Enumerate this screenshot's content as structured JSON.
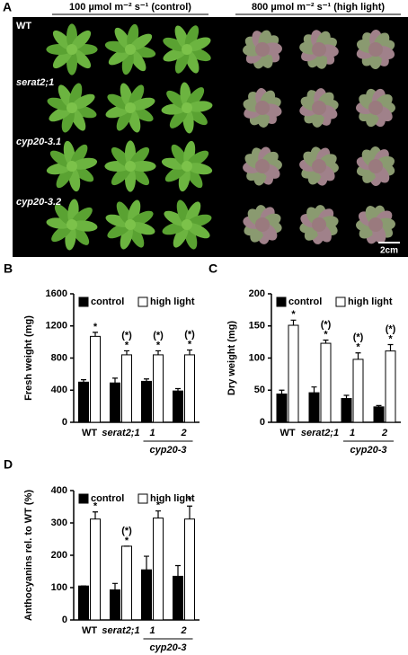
{
  "panel_a": {
    "label": "A",
    "headers": [
      "100 µmol m⁻² s⁻¹ (control)",
      "800 µmol m⁻² s⁻¹ (high light)"
    ],
    "rows": [
      "WT",
      "serat2;1",
      "cyp20-3.1",
      "cyp20-3.2"
    ],
    "scale_bar": "2cm"
  },
  "chart_data": [
    {
      "type": "bar",
      "panel_label": "B",
      "ylabel": "Fresh weight (mg)",
      "categories": [
        "WT",
        "serat2;1",
        "1",
        "2"
      ],
      "group_label": "cyp20-3",
      "series": [
        {
          "name": "control",
          "color": "#000000",
          "values": [
            500,
            490,
            510,
            390
          ],
          "errors": [
            30,
            60,
            30,
            30
          ]
        },
        {
          "name": "high light",
          "color": "#ffffff",
          "values": [
            1070,
            840,
            840,
            840
          ],
          "errors": [
            50,
            50,
            50,
            60
          ]
        }
      ],
      "annotations": [
        [
          "*"
        ],
        [
          "(*)",
          "*"
        ],
        [
          "(*)",
          "*"
        ],
        [
          "(*)",
          "*"
        ]
      ],
      "ylim": [
        0,
        1600
      ],
      "yticks": [
        0,
        400,
        800,
        1200,
        1600
      ]
    },
    {
      "type": "bar",
      "panel_label": "C",
      "ylabel": "Dry weight (mg)",
      "categories": [
        "WT",
        "serat2;1",
        "1",
        "2"
      ],
      "group_label": "cyp20-3",
      "series": [
        {
          "name": "control",
          "color": "#000000",
          "values": [
            44,
            46,
            37,
            24
          ],
          "errors": [
            6,
            9,
            5,
            2
          ]
        },
        {
          "name": "high light",
          "color": "#ffffff",
          "values": [
            151,
            123,
            98,
            111
          ],
          "errors": [
            8,
            5,
            10,
            10
          ]
        }
      ],
      "annotations": [
        [
          "*"
        ],
        [
          "(*)",
          "*"
        ],
        [
          "(*)",
          "*"
        ],
        [
          "(*)",
          "*"
        ]
      ],
      "ylim": [
        0,
        200
      ],
      "yticks": [
        0,
        50,
        100,
        150,
        200
      ]
    },
    {
      "type": "bar",
      "panel_label": "D",
      "ylabel": "Anthocyanins rel. to WT (%)",
      "categories": [
        "WT",
        "serat2;1",
        "1",
        "2"
      ],
      "group_label": "cyp20-3",
      "series": [
        {
          "name": "control",
          "color": "#000000",
          "values": [
            105,
            93,
            155,
            135
          ],
          "errors": [
            0,
            20,
            42,
            33
          ]
        },
        {
          "name": "high light",
          "color": "#ffffff",
          "values": [
            312,
            228,
            315,
            312
          ],
          "errors": [
            22,
            0,
            22,
            40
          ]
        }
      ],
      "annotations": [
        [
          "*"
        ],
        [
          "(*)",
          "*"
        ],
        [
          "*"
        ],
        [
          "*"
        ]
      ],
      "ylim": [
        0,
        400
      ],
      "yticks": [
        0,
        100,
        200,
        300,
        400
      ]
    }
  ]
}
